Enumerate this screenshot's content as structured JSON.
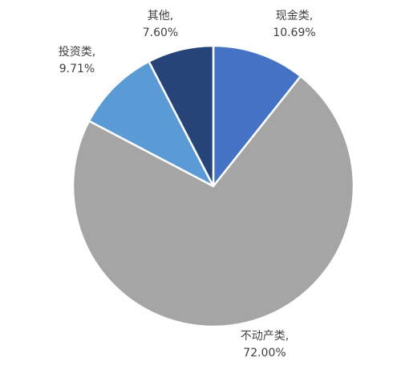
{
  "chart_data": {
    "type": "pie",
    "title": "",
    "start_angle_deg": 0,
    "direction": "clockwise",
    "slices": [
      {
        "name": "现金类,",
        "value": 10.69,
        "value_label": "10.69%",
        "color": "#4472C4"
      },
      {
        "name": "不动产类,",
        "value": 72.0,
        "value_label": "72.00%",
        "color": "#A5A5A5"
      },
      {
        "name": "投资类,",
        "value": 9.71,
        "value_label": "9.71%",
        "color": "#5B9BD5"
      },
      {
        "name": "其他,",
        "value": 7.6,
        "value_label": "7.60%",
        "color": "#264478"
      }
    ],
    "legend": "none",
    "slice_border_color": "#ffffff"
  }
}
